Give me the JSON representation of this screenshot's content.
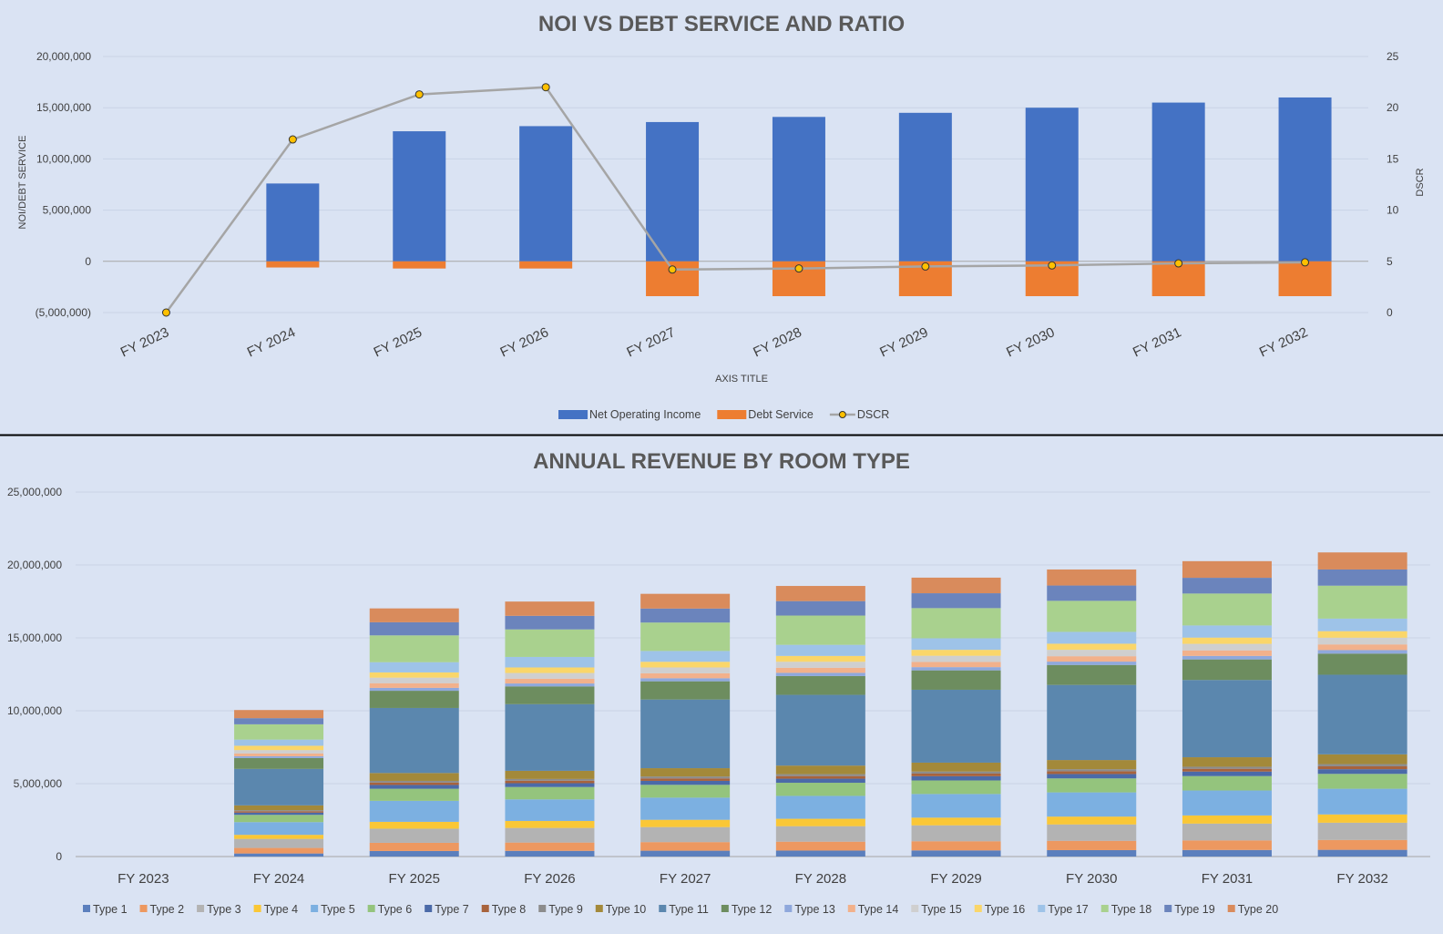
{
  "chart_data": [
    {
      "type": "bar",
      "title": "NOI VS DEBT SERVICE AND RATIO",
      "xlabel": "AXIS TITLE",
      "ylabel": "NOI/DEBT SERVICE",
      "y2label": "DSCR",
      "categories": [
        "FY 2023",
        "FY 2024",
        "FY 2025",
        "FY 2026",
        "FY 2027",
        "FY 2028",
        "FY 2029",
        "FY 2030",
        "FY 2031",
        "FY 2032"
      ],
      "ylim": [
        -5000000,
        20000000
      ],
      "y2lim": [
        0,
        25
      ],
      "yticks": [
        "20,000,000",
        "15,000,000",
        "10,000,000",
        "5,000,000",
        "0",
        "(5,000,000)"
      ],
      "y2ticks": [
        "25",
        "20",
        "15",
        "10",
        "5",
        "0"
      ],
      "grid": true,
      "legend_position": "bottom",
      "series": [
        {
          "name": "Net Operating Income",
          "kind": "bar",
          "color": "#4472c4",
          "values": [
            0,
            7600000,
            12700000,
            13200000,
            13600000,
            14100000,
            14500000,
            15000000,
            15500000,
            16000000
          ]
        },
        {
          "name": "Debt Service",
          "kind": "bar",
          "color": "#ed7d31",
          "values": [
            0,
            -600000,
            -700000,
            -700000,
            -3400000,
            -3400000,
            -3400000,
            -3400000,
            -3400000,
            -3400000
          ]
        },
        {
          "name": "DSCR",
          "kind": "line",
          "axis": "secondary",
          "color": "#a5a5a5",
          "marker": "#ffc000",
          "values": [
            0,
            16.9,
            21.3,
            22.0,
            4.2,
            4.3,
            4.5,
            4.6,
            4.8,
            4.9
          ]
        }
      ]
    },
    {
      "type": "bar",
      "stacked": true,
      "title": "ANNUAL REVENUE BY ROOM TYPE",
      "categories": [
        "FY 2023",
        "FY 2024",
        "FY 2025",
        "FY 2026",
        "FY 2027",
        "FY 2028",
        "FY 2029",
        "FY 2030",
        "FY 2031",
        "FY 2032"
      ],
      "ylim": [
        0,
        25000000
      ],
      "yticks": [
        "25,000,000",
        "20,000,000",
        "15,000,000",
        "10,000,000",
        "5,000,000",
        "0"
      ],
      "grid": true,
      "legend_position": "bottom",
      "series": [
        {
          "name": "Type 1",
          "color": "#5b7fbd",
          "values": [
            0,
            210000,
            380000,
            390000,
            400000,
            410000,
            420000,
            440000,
            450000,
            460000
          ]
        },
        {
          "name": "Type 2",
          "color": "#ed9860",
          "values": [
            0,
            380000,
            560000,
            570000,
            590000,
            610000,
            630000,
            640000,
            660000,
            680000
          ]
        },
        {
          "name": "Type 3",
          "color": "#b3b3b3",
          "values": [
            0,
            620000,
            970000,
            1000000,
            1030000,
            1060000,
            1090000,
            1120000,
            1150000,
            1180000
          ]
        },
        {
          "name": "Type 4",
          "color": "#fac736",
          "values": [
            0,
            280000,
            470000,
            480000,
            500000,
            510000,
            530000,
            540000,
            560000,
            570000
          ]
        },
        {
          "name": "Type 5",
          "color": "#7cb0e1",
          "values": [
            0,
            870000,
            1440000,
            1480000,
            1520000,
            1570000,
            1620000,
            1660000,
            1710000,
            1760000
          ]
        },
        {
          "name": "Type 6",
          "color": "#94c47d",
          "values": [
            0,
            500000,
            830000,
            850000,
            880000,
            900000,
            930000,
            960000,
            990000,
            1020000
          ]
        },
        {
          "name": "Type 7",
          "color": "#4b6aa8",
          "values": [
            0,
            150000,
            260000,
            260000,
            270000,
            280000,
            290000,
            300000,
            310000,
            320000
          ]
        },
        {
          "name": "Type 8",
          "color": "#a8633c",
          "values": [
            0,
            100000,
            160000,
            170000,
            170000,
            180000,
            180000,
            190000,
            190000,
            200000
          ]
        },
        {
          "name": "Type 9",
          "color": "#8c8c8c",
          "values": [
            0,
            70000,
            120000,
            120000,
            130000,
            130000,
            140000,
            140000,
            140000,
            150000
          ]
        },
        {
          "name": "Type 10",
          "color": "#a3893a",
          "values": [
            0,
            330000,
            540000,
            560000,
            570000,
            590000,
            610000,
            630000,
            650000,
            670000
          ]
        },
        {
          "name": "Type 11",
          "color": "#5b87ae",
          "values": [
            0,
            2500000,
            4460000,
            4570000,
            4710000,
            4850000,
            5000000,
            5150000,
            5300000,
            5460000
          ]
        },
        {
          "name": "Type 12",
          "color": "#6d8d5f",
          "values": [
            0,
            750000,
            1180000,
            1220000,
            1250000,
            1290000,
            1330000,
            1370000,
            1410000,
            1450000
          ]
        },
        {
          "name": "Type 13",
          "color": "#8fa8dc",
          "values": [
            0,
            120000,
            200000,
            200000,
            210000,
            220000,
            220000,
            230000,
            240000,
            240000
          ]
        },
        {
          "name": "Type 14",
          "color": "#f2b18b",
          "values": [
            0,
            190000,
            320000,
            330000,
            340000,
            350000,
            360000,
            370000,
            380000,
            390000
          ]
        },
        {
          "name": "Type 15",
          "color": "#cfcfcf",
          "values": [
            0,
            230000,
            380000,
            390000,
            400000,
            410000,
            420000,
            440000,
            450000,
            460000
          ]
        },
        {
          "name": "Type 16",
          "color": "#fad66a",
          "values": [
            0,
            300000,
            360000,
            380000,
            390000,
            400000,
            410000,
            420000,
            430000,
            450000
          ]
        },
        {
          "name": "Type 17",
          "color": "#9ec3e8",
          "values": [
            0,
            420000,
            700000,
            720000,
            740000,
            760000,
            790000,
            810000,
            830000,
            860000
          ]
        },
        {
          "name": "Type 18",
          "color": "#a9d18e",
          "values": [
            0,
            1050000,
            1840000,
            1890000,
            1950000,
            2010000,
            2070000,
            2130000,
            2190000,
            2260000
          ]
        },
        {
          "name": "Type 19",
          "color": "#6b84bc",
          "values": [
            0,
            420000,
            900000,
            930000,
            960000,
            990000,
            1020000,
            1050000,
            1080000,
            1110000
          ]
        },
        {
          "name": "Type 20",
          "color": "#d98b5c",
          "values": [
            0,
            560000,
            950000,
            980000,
            1010000,
            1040000,
            1070000,
            1100000,
            1140000,
            1170000
          ]
        }
      ]
    }
  ]
}
